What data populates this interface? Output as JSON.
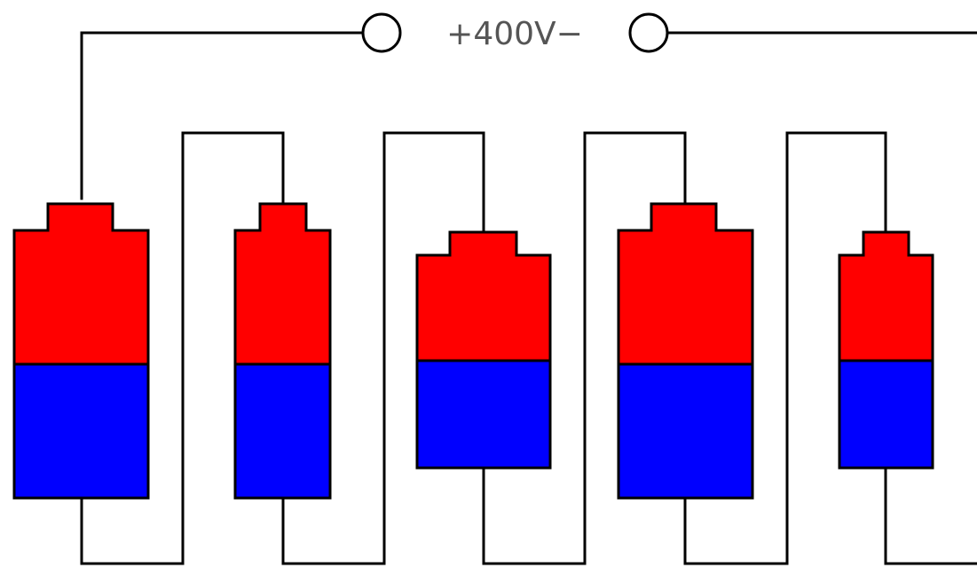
{
  "supply": {
    "label": "+400V−"
  },
  "colors": {
    "positive_half": "#ff0000",
    "negative_half": "#0000ff",
    "wire": "#000000",
    "terminal_fill": "#ffffff",
    "label_text": "#555555"
  },
  "batteries": [
    {
      "id": "battery-1",
      "positive": "top",
      "negative": "bottom"
    },
    {
      "id": "battery-2",
      "positive": "top",
      "negative": "bottom"
    },
    {
      "id": "battery-3",
      "positive": "top",
      "negative": "bottom"
    },
    {
      "id": "battery-4",
      "positive": "top",
      "negative": "bottom"
    },
    {
      "id": "battery-5",
      "positive": "top",
      "negative": "bottom"
    }
  ]
}
